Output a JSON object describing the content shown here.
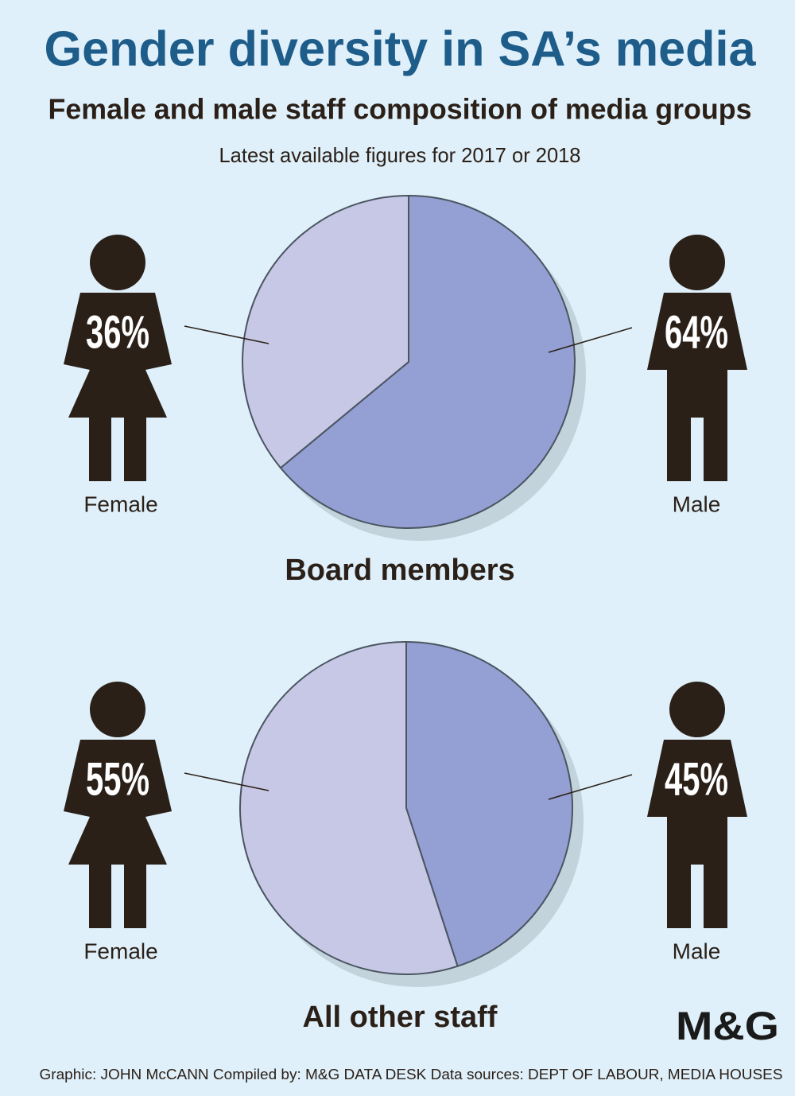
{
  "header": {
    "title": "Gender diversity in SA’s media",
    "subtitle": "Female and male staff composition of media groups",
    "note": "Latest available figures for 2017 or 2018"
  },
  "chart_data": [
    {
      "type": "pie",
      "title": "Board members",
      "categories": [
        "Female",
        "Male"
      ],
      "values": [
        36,
        64
      ],
      "value_labels": [
        "36%",
        "64%"
      ],
      "colors": [
        "#c7c8e6",
        "#949fd4"
      ]
    },
    {
      "type": "pie",
      "title": "All other staff",
      "categories": [
        "Female",
        "Male"
      ],
      "values": [
        55,
        45
      ],
      "value_labels": [
        "55%",
        "45%"
      ],
      "colors": [
        "#c7c8e6",
        "#949fd4"
      ]
    }
  ],
  "footer": {
    "logo": "M&G",
    "credit": "Graphic: JOHN McCANN  Compiled by: M&G DATA DESK  Data sources: DEPT OF LABOUR, MEDIA HOUSES"
  }
}
